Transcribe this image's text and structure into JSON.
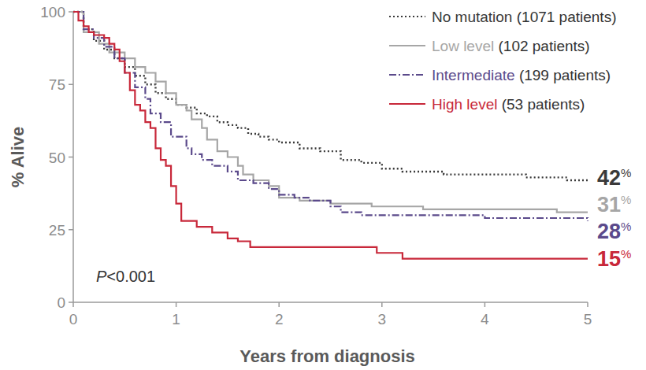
{
  "chart_data": {
    "type": "step",
    "xlabel": "Years from diagnosis",
    "ylabel": "% Alive",
    "xlim": [
      0,
      5
    ],
    "ylim": [
      0,
      100
    ],
    "xticks": [
      0,
      1,
      2,
      3,
      4,
      5
    ],
    "yticks": [
      0,
      25,
      50,
      75,
      100
    ],
    "grid": false,
    "legend": "top-right",
    "annotation": "P<0.001",
    "series": [
      {
        "name": "No mutation (1071 patients)",
        "color": "#3a3a3a",
        "line_style": "dotted",
        "x": [
          0,
          0.1,
          0.2,
          0.3,
          0.4,
          0.5,
          0.6,
          0.7,
          0.8,
          0.9,
          1.0,
          1.1,
          1.2,
          1.3,
          1.4,
          1.5,
          1.6,
          1.7,
          1.8,
          1.9,
          2.0,
          2.2,
          2.4,
          2.6,
          2.8,
          3.0,
          3.2,
          3.6,
          4.0,
          4.4,
          4.8,
          5
        ],
        "values": [
          100,
          94,
          90,
          87,
          84,
          81,
          78,
          75,
          72,
          70,
          68,
          67,
          65,
          64,
          62,
          61,
          60,
          58,
          57,
          56,
          55,
          53,
          52,
          49,
          48,
          46,
          45,
          44,
          44,
          43,
          42,
          42
        ],
        "end_label": {
          "value": 42,
          "label": "42%"
        }
      },
      {
        "name": "Low level (102 patients)",
        "color": "#a6a6a6",
        "line_style": "solid",
        "x": [
          0,
          0.1,
          0.25,
          0.35,
          0.5,
          0.6,
          0.7,
          0.8,
          0.9,
          1.0,
          1.1,
          1.15,
          1.25,
          1.3,
          1.4,
          1.5,
          1.6,
          1.65,
          1.75,
          1.9,
          2.0,
          2.2,
          2.5,
          2.9,
          3.4,
          4.7,
          5
        ],
        "values": [
          100,
          93,
          89,
          86,
          84,
          81,
          79,
          76,
          72,
          68,
          66,
          63,
          60,
          56,
          52,
          50,
          47,
          44,
          42,
          40,
          36,
          35,
          34,
          33,
          32,
          31,
          31
        ],
        "end_label": {
          "value": 31,
          "label": "31%"
        }
      },
      {
        "name": "Intermediate (199 patients)",
        "color": "#5b4a8b",
        "line_style": "dashdot",
        "x": [
          0,
          0.1,
          0.2,
          0.3,
          0.4,
          0.5,
          0.6,
          0.7,
          0.75,
          0.85,
          0.95,
          1.1,
          1.15,
          1.25,
          1.35,
          1.5,
          1.6,
          1.75,
          1.9,
          2.0,
          2.15,
          2.3,
          2.5,
          2.6,
          2.8,
          4.0,
          4.6,
          5
        ],
        "values": [
          100,
          94,
          91,
          88,
          84,
          79,
          74,
          70,
          65,
          62,
          57,
          53,
          51,
          49,
          47,
          45,
          42,
          41,
          39,
          37,
          36,
          35,
          33,
          31,
          30,
          29,
          29,
          28
        ],
        "end_label": {
          "value": 28,
          "label": "28%"
        }
      },
      {
        "name": "High level (53 patients)",
        "color": "#c8283a",
        "line_style": "solid",
        "x": [
          0,
          0.05,
          0.1,
          0.15,
          0.2,
          0.3,
          0.35,
          0.4,
          0.45,
          0.5,
          0.55,
          0.6,
          0.65,
          0.7,
          0.75,
          0.8,
          0.85,
          0.9,
          0.95,
          1.0,
          1.05,
          1.2,
          1.35,
          1.5,
          1.6,
          1.72,
          2.95,
          3.2,
          5
        ],
        "values": [
          100,
          97,
          95,
          93,
          92,
          91,
          89,
          87,
          83,
          79,
          73,
          68,
          66,
          62,
          60,
          53,
          49,
          47,
          40,
          34,
          28,
          26,
          24,
          22,
          21,
          19,
          17,
          15,
          15
        ],
        "end_label": {
          "value": 15,
          "label": "15%"
        }
      }
    ]
  }
}
